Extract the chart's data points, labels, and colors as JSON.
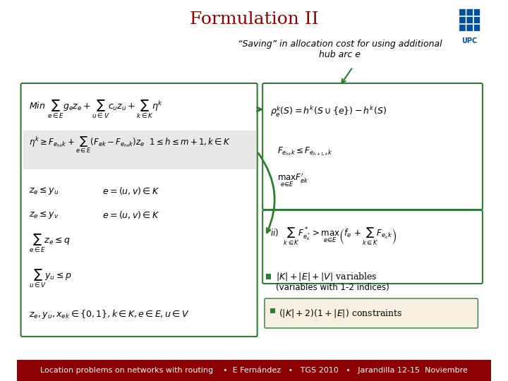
{
  "title": "Formulation II",
  "title_color": "#8B0000",
  "title_fontsize": 18,
  "bg_color": "#FFFFFF",
  "footer_bg_color": "#8B0000",
  "footer_text": "Location problems on networks with routing    •  E Fernández   •   TGS 2010   •   Jarandilla 12-15  Noviembre",
  "footer_color": "#FFFFFF",
  "footer_fontsize": 8,
  "annotation_text": "“Saving” in allocation cost for using additional\nhub arc e",
  "annotation_color": "#000000",
  "annotation_fontsize": 9,
  "green_color": "#2E7D32",
  "green_dark": "#1B5E20",
  "box_left_border": "#2E7D32",
  "box_right_border": "#2E7D32",
  "highlight_row_color": "#E8E8E8",
  "upc_blue": "#0050A0"
}
